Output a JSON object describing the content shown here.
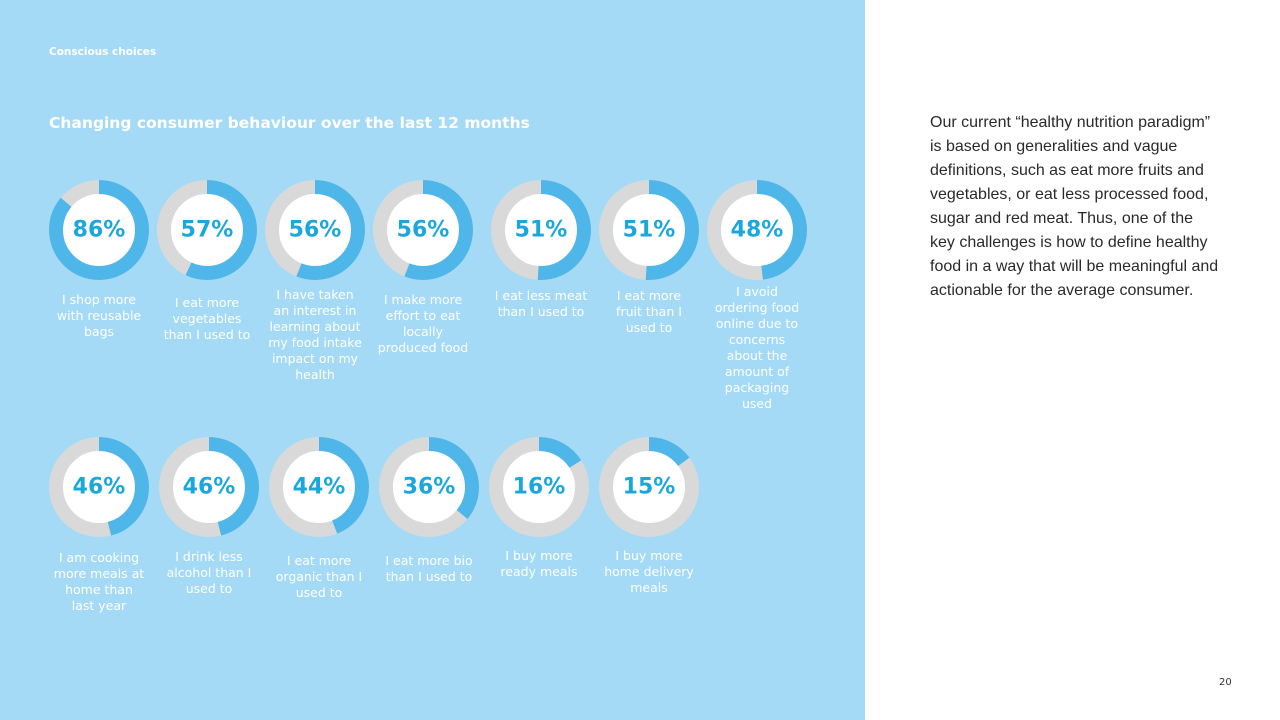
{
  "section_label": "Conscious choices",
  "chart_title": "Changing consumer behaviour over the last 12 months",
  "chart_data": {
    "type": "donut",
    "title": "Changing consumer behaviour over the last 12 months",
    "unit": "%",
    "items": [
      {
        "label": "I shop more with reusable bags",
        "value": 86,
        "display": "86%"
      },
      {
        "label": "I eat more vegetables than I used to",
        "value": 57,
        "display": "57%"
      },
      {
        "label": "I have taken an interest in learning about my food intake impact on my health",
        "value": 56,
        "display": "56%"
      },
      {
        "label": "I make more effort to eat locally produced food",
        "value": 56,
        "display": "56%"
      },
      {
        "label": "I eat less meat than I used to",
        "value": 51,
        "display": "51%"
      },
      {
        "label": "I eat more fruit than I used to",
        "value": 51,
        "display": "51%"
      },
      {
        "label": "I avoid ordering food online due to concerns about the amount of packaging used",
        "value": 48,
        "display": "48%"
      },
      {
        "label": "I am cooking more meals at home than last year",
        "value": 46,
        "display": "46%"
      },
      {
        "label": "I drink less alcohol than I used to",
        "value": 46,
        "display": "46%"
      },
      {
        "label": "I eat more organic than I used to",
        "value": 44,
        "display": "44%"
      },
      {
        "label": "I eat more bio than I used to",
        "value": 36,
        "display": "36%"
      },
      {
        "label": "I buy more ready meals",
        "value": 16,
        "display": "16%"
      },
      {
        "label": "I buy more home delivery meals",
        "value": 15,
        "display": "15%"
      }
    ]
  },
  "colors": {
    "panel_background": "#a4daf6",
    "ring_fill": "#4fb6e9",
    "ring_track": "#d9d9d9",
    "percent_text": "#1aa7de"
  },
  "body_text": "Our current “healthy nutrition paradigm” is based on generalities and vague definitions, such as eat more fruits and vegetables, or eat less processed food, sugar and red meat. Thus, one of the key challenges is how to define healthy food in a way that will be meaningful and actionable for the average consumer.",
  "page_number": "20"
}
